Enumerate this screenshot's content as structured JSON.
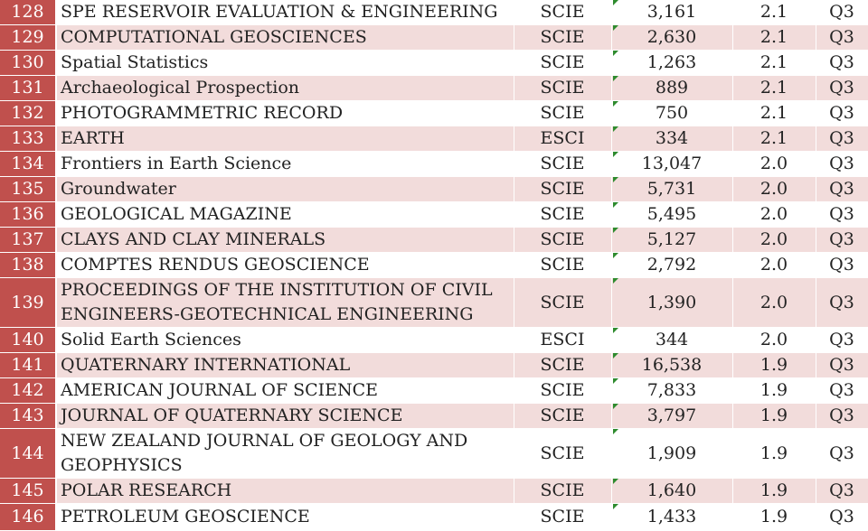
{
  "rows": [
    {
      "rank": "128",
      "name": "SPE RESERVOIR EVALUATION & ENGINEERING",
      "index": "SCIE",
      "cites": "3,161",
      "impact": "2.1",
      "quartile": "Q3"
    },
    {
      "rank": "129",
      "name": "COMPUTATIONAL GEOSCIENCES",
      "index": "SCIE",
      "cites": "2,630",
      "impact": "2.1",
      "quartile": "Q3"
    },
    {
      "rank": "130",
      "name": "Spatial Statistics",
      "index": "SCIE",
      "cites": "1,263",
      "impact": "2.1",
      "quartile": "Q3"
    },
    {
      "rank": "131",
      "name": "Archaeological Prospection",
      "index": "SCIE",
      "cites": "889",
      "impact": "2.1",
      "quartile": "Q3"
    },
    {
      "rank": "132",
      "name": "PHOTOGRAMMETRIC RECORD",
      "index": "SCIE",
      "cites": "750",
      "impact": "2.1",
      "quartile": "Q3"
    },
    {
      "rank": "133",
      "name": "EARTH",
      "index": "ESCI",
      "cites": "334",
      "impact": "2.1",
      "quartile": "Q3"
    },
    {
      "rank": "134",
      "name": "Frontiers in Earth Science",
      "index": "SCIE",
      "cites": "13,047",
      "impact": "2.0",
      "quartile": "Q3"
    },
    {
      "rank": "135",
      "name": "Groundwater",
      "index": "SCIE",
      "cites": "5,731",
      "impact": "2.0",
      "quartile": "Q3"
    },
    {
      "rank": "136",
      "name": "GEOLOGICAL MAGAZINE",
      "index": "SCIE",
      "cites": "5,495",
      "impact": "2.0",
      "quartile": "Q3"
    },
    {
      "rank": "137",
      "name": "CLAYS AND CLAY MINERALS",
      "index": "SCIE",
      "cites": "5,127",
      "impact": "2.0",
      "quartile": "Q3"
    },
    {
      "rank": "138",
      "name": "COMPTES RENDUS GEOSCIENCE",
      "index": "SCIE",
      "cites": "2,792",
      "impact": "2.0",
      "quartile": "Q3"
    },
    {
      "rank": "139",
      "name": "PROCEEDINGS OF THE INSTITUTION OF CIVIL ENGINEERS-GEOTECHNICAL ENGINEERING",
      "index": "SCIE",
      "cites": "1,390",
      "impact": "2.0",
      "quartile": "Q3"
    },
    {
      "rank": "140",
      "name": "Solid Earth Sciences",
      "index": "ESCI",
      "cites": "344",
      "impact": "2.0",
      "quartile": "Q3"
    },
    {
      "rank": "141",
      "name": "QUATERNARY INTERNATIONAL",
      "index": "SCIE",
      "cites": "16,538",
      "impact": "1.9",
      "quartile": "Q3"
    },
    {
      "rank": "142",
      "name": "AMERICAN JOURNAL OF SCIENCE",
      "index": "SCIE",
      "cites": "7,833",
      "impact": "1.9",
      "quartile": "Q3"
    },
    {
      "rank": "143",
      "name": "JOURNAL OF QUATERNARY SCIENCE",
      "index": "SCIE",
      "cites": "3,797",
      "impact": "1.9",
      "quartile": "Q3"
    },
    {
      "rank": "144",
      "name": "NEW ZEALAND JOURNAL OF GEOLOGY AND GEOPHYSICS",
      "index": "SCIE",
      "cites": "1,909",
      "impact": "1.9",
      "quartile": "Q3"
    },
    {
      "rank": "145",
      "name": "POLAR RESEARCH",
      "index": "SCIE",
      "cites": "1,640",
      "impact": "1.9",
      "quartile": "Q3"
    },
    {
      "rank": "146",
      "name": "PETROLEUM GEOSCIENCE",
      "index": "SCIE",
      "cites": "1,433",
      "impact": "1.9",
      "quartile": "Q3"
    }
  ],
  "colors": {
    "rank_fill": "#c0504d",
    "band_fill": "#f2dcdb",
    "plain_fill": "#ffffff",
    "marker": "#2e8b2e"
  }
}
